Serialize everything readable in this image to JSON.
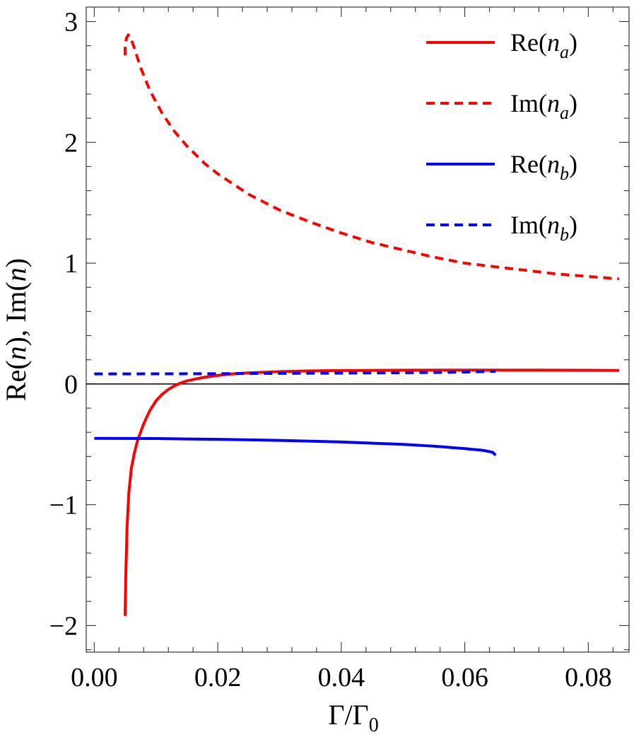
{
  "chart_data": {
    "type": "line",
    "xlabel": "Γ/Γ",
    "xlabel_sub": "0",
    "ylabel": "Re(n),  Im(n)",
    "ylabel_parts": [
      {
        "text": "Re(",
        "italic": false
      },
      {
        "text": "n",
        "italic": true
      },
      {
        "text": "),  Im(",
        "italic": false
      },
      {
        "text": "n",
        "italic": true
      },
      {
        "text": ")",
        "italic": false
      }
    ],
    "xlim": [
      -0.0013,
      0.0866
    ],
    "ylim": [
      -2.22,
      3.12
    ],
    "x_ticks": [
      0.0,
      0.02,
      0.04,
      0.06,
      0.08
    ],
    "x_tick_labels": [
      "0.00",
      "0.02",
      "0.04",
      "0.06",
      "0.08"
    ],
    "x_minor_step": 0.004,
    "y_ticks": [
      -2,
      -1,
      0,
      1,
      2,
      3
    ],
    "y_tick_labels": [
      "−2",
      "−1",
      "0",
      "1",
      "2",
      "3"
    ],
    "y_minor_step": 0.2,
    "zero_line": true,
    "legend_position": "top-right",
    "series": [
      {
        "name": "Re(n_a)",
        "label_base": "Re(",
        "label_var": "n",
        "label_sub": "a",
        "label_end": ")",
        "color": "#ff0000",
        "dashed": false,
        "points": [
          [
            0.005,
            -1.92
          ],
          [
            0.0051,
            -1.6
          ],
          [
            0.0053,
            -1.2
          ],
          [
            0.0056,
            -0.9
          ],
          [
            0.006,
            -0.7
          ],
          [
            0.0065,
            -0.57
          ],
          [
            0.007,
            -0.47
          ],
          [
            0.0075,
            -0.4
          ],
          [
            0.008,
            -0.33
          ],
          [
            0.009,
            -0.22
          ],
          [
            0.01,
            -0.14
          ],
          [
            0.011,
            -0.085
          ],
          [
            0.012,
            -0.045
          ],
          [
            0.013,
            -0.015
          ],
          [
            0.014,
            0.008
          ],
          [
            0.015,
            0.025
          ],
          [
            0.016,
            0.037
          ],
          [
            0.018,
            0.057
          ],
          [
            0.02,
            0.071
          ],
          [
            0.022,
            0.082
          ],
          [
            0.025,
            0.092
          ],
          [
            0.03,
            0.102
          ],
          [
            0.035,
            0.108
          ],
          [
            0.04,
            0.111
          ],
          [
            0.05,
            0.114
          ],
          [
            0.06,
            0.115
          ],
          [
            0.07,
            0.115
          ],
          [
            0.08,
            0.113
          ],
          [
            0.085,
            0.112
          ]
        ]
      },
      {
        "name": "Im(n_a)",
        "label_base": "Im(",
        "label_var": "n",
        "label_sub": "a",
        "label_end": ")",
        "color": "#ff0000",
        "dashed": true,
        "points": [
          [
            0.005,
            2.72
          ],
          [
            0.005,
            2.8
          ],
          [
            0.0052,
            2.86
          ],
          [
            0.0055,
            2.89
          ],
          [
            0.0058,
            2.88
          ],
          [
            0.0065,
            2.78
          ],
          [
            0.0075,
            2.62
          ],
          [
            0.009,
            2.43
          ],
          [
            0.011,
            2.24
          ],
          [
            0.013,
            2.09
          ],
          [
            0.015,
            1.97
          ],
          [
            0.018,
            1.82
          ],
          [
            0.02,
            1.74
          ],
          [
            0.025,
            1.57
          ],
          [
            0.03,
            1.44
          ],
          [
            0.035,
            1.34
          ],
          [
            0.04,
            1.25
          ],
          [
            0.045,
            1.17
          ],
          [
            0.05,
            1.11
          ],
          [
            0.055,
            1.05
          ],
          [
            0.06,
            1.0
          ],
          [
            0.065,
            0.97
          ],
          [
            0.07,
            0.94
          ],
          [
            0.075,
            0.91
          ],
          [
            0.08,
            0.89
          ],
          [
            0.085,
            0.87
          ]
        ]
      },
      {
        "name": "Re(n_b)",
        "label_base": "Re(",
        "label_var": "n",
        "label_sub": "b",
        "label_end": ")",
        "color": "#0000ff",
        "dashed": false,
        "points": [
          [
            0.0,
            -0.45
          ],
          [
            0.01,
            -0.452
          ],
          [
            0.02,
            -0.458
          ],
          [
            0.03,
            -0.467
          ],
          [
            0.04,
            -0.48
          ],
          [
            0.05,
            -0.5
          ],
          [
            0.055,
            -0.515
          ],
          [
            0.06,
            -0.535
          ],
          [
            0.063,
            -0.55
          ],
          [
            0.0645,
            -0.565
          ],
          [
            0.065,
            -0.59
          ]
        ]
      },
      {
        "name": "Im(n_b)",
        "label_base": "Im(",
        "label_var": "n",
        "label_sub": "b",
        "label_end": ")",
        "color": "#0000ff",
        "dashed": true,
        "points": [
          [
            0.0,
            0.083
          ],
          [
            0.02,
            0.085
          ],
          [
            0.04,
            0.09
          ],
          [
            0.055,
            0.095
          ],
          [
            0.06,
            0.098
          ],
          [
            0.065,
            0.105
          ]
        ]
      }
    ]
  }
}
